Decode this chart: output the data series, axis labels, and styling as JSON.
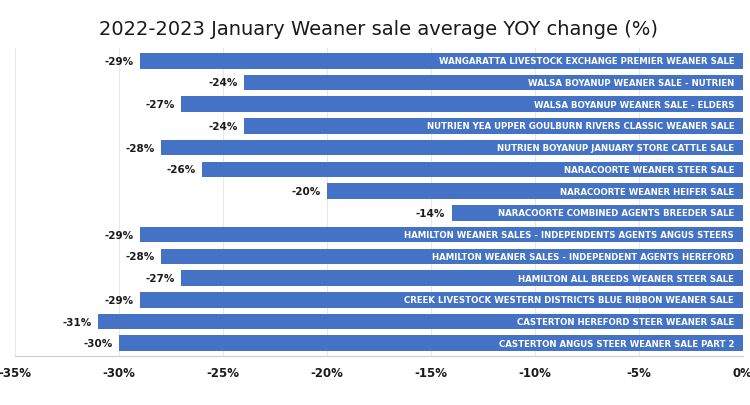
{
  "title": "2022-2023 January Weaner sale average YOY change (%)",
  "categories": [
    "CASTERTON ANGUS STEER WEANER SALE PART 2",
    "CASTERTON HEREFORD STEER WEANER SALE",
    "CREEK LIVESTOCK WESTERN DISTRICTS BLUE RIBBON WEANER SALE",
    "HAMILTON ALL BREEDS WEANER STEER SALE",
    "HAMILTON WEANER SALES - INDEPENDENT AGENTS HEREFORD",
    "HAMILTON WEANER SALES - INDEPENDENTS AGENTS ANGUS STEERS",
    "NARACOORTE COMBINED AGENTS BREEDER SALE",
    "NARACOORTE WEANER HEIFER SALE",
    "NARACOORTE WEANER STEER SALE",
    "NUTRIEN BOYANUP JANUARY STORE CATTLE SALE",
    "NUTRIEN YEA UPPER GOULBURN RIVERS CLASSIC WEANER SALE",
    "WALSA BOYANUP WEANER SALE - ELDERS",
    "WALSA BOYANUP WEANER SALE - NUTRIEN",
    "WANGARATTA LIVESTOCK EXCHANGE PREMIER WEANER SALE"
  ],
  "values": [
    -30,
    -31,
    -29,
    -27,
    -28,
    -29,
    -14,
    -20,
    -26,
    -28,
    -24,
    -27,
    -24,
    -29
  ],
  "bar_color": "#4472C4",
  "value_label_color": "#1a1a1a",
  "background_color": "#FFFFFF",
  "title_fontsize": 14,
  "bar_label_fontsize": 7.5,
  "bar_text_fontsize": 6.2,
  "xlim": [
    -35,
    0
  ],
  "xticks": [
    -35,
    -30,
    -25,
    -20,
    -15,
    -10,
    -5,
    0
  ],
  "xtick_labels": [
    "-35%",
    "-30%",
    "-25%",
    "-20%",
    "-15%",
    "-10%",
    "-5%",
    "0%"
  ]
}
